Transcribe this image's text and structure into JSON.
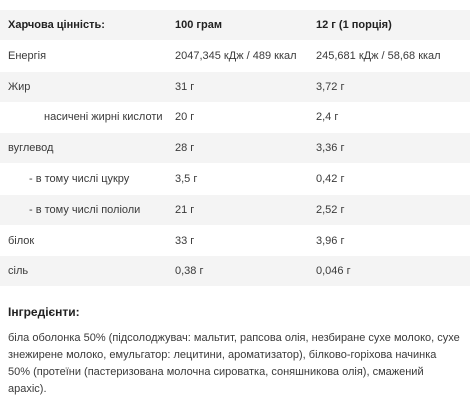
{
  "nutrition": {
    "headers": [
      "Харчова цінність:",
      "100 грам",
      "12 г (1 порція)"
    ],
    "rows": [
      {
        "name": "Енергія",
        "per100": "2047,345 кДж / 489 ккал",
        "perServing": "245,681 кДж / 58,68 ккал"
      },
      {
        "name": "Жир",
        "per100": "31 г",
        "perServing": "3,72 г"
      },
      {
        "name": "насичені жирні кислоти",
        "per100": "20 г",
        "perServing": "2,4 г"
      },
      {
        "name": "вуглевод",
        "per100": "28 г",
        "perServing": "3,36 г"
      },
      {
        "name": "- в тому числі цукру",
        "per100": "3,5 г",
        "perServing": "0,42 г"
      },
      {
        "name": "- в тому числі поліоли",
        "per100": "21 г",
        "perServing": "2,52 г"
      },
      {
        "name": "білок",
        "per100": "33 г",
        "perServing": "3,96 г"
      },
      {
        "name": "сіль",
        "per100": "0,38 г",
        "perServing": "0,046 г"
      }
    ]
  },
  "ingredients": {
    "title": "Інгредієнти:",
    "text": "біла оболонка 50% (підсолоджувач: мальтит, рапсова олія, незбиране сухе молоко, сухе знежирене молоко, емульгатор: лецитини, ароматизатор), білково-горіхова начинка 50% (протеїни (пастеризована молочна сироватка, соняшникова олія), смажений арахіс)."
  },
  "colors": {
    "row_shade": "#f4f4f4",
    "text": "#3a3a3a",
    "heading": "#222222"
  }
}
